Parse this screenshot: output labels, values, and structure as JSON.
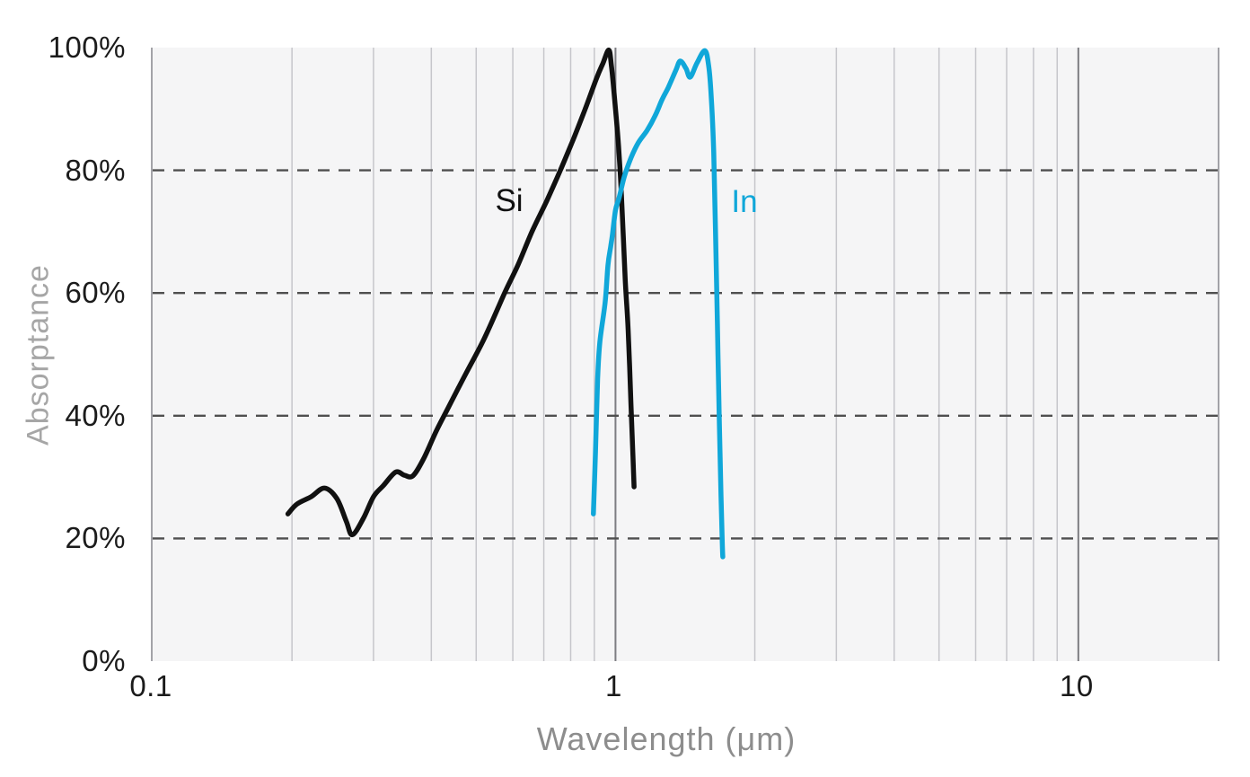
{
  "chart_data": {
    "type": "line",
    "title": "",
    "xlabel": "Wavelength (μm)",
    "ylabel": "Absorptance",
    "x_scale": "log",
    "xlim": [
      0.1,
      20
    ],
    "ylim": [
      0,
      100
    ],
    "grid": "vertical-solid, horizontal-dashed",
    "legend_position": "inline-labels",
    "x_ticks": [
      {
        "value": 0.1,
        "label": "0.1"
      },
      {
        "value": 1,
        "label": "1"
      },
      {
        "value": 10,
        "label": "10"
      }
    ],
    "y_ticks": [
      {
        "value": 0,
        "label": "0%"
      },
      {
        "value": 20,
        "label": "20%"
      },
      {
        "value": 40,
        "label": "40%"
      },
      {
        "value": 60,
        "label": "60%"
      },
      {
        "value": 80,
        "label": "80%"
      },
      {
        "value": 100,
        "label": "100%"
      }
    ],
    "x_gridlines_minor": [
      0.2,
      0.3,
      0.4,
      0.5,
      0.6,
      0.7,
      0.8,
      0.9,
      2,
      3,
      4,
      5,
      6,
      7,
      8,
      9
    ],
    "x_gridlines_major": [
      1,
      10
    ],
    "y_gridlines_dashed": [
      20,
      40,
      60,
      80
    ],
    "colors": {
      "plot_background": "#f5f5f6",
      "gridline_minor": "#c6c6cb",
      "gridline_major": "#7d7d82",
      "dashed_line": "#4f4f4f",
      "si_curve": "#111111",
      "in_curve": "#10a7d9",
      "tick_text": "#1b1b1b",
      "axis_title_y": "#a6a6a6",
      "axis_title_x": "#8d8d8d"
    },
    "series": [
      {
        "name": "Si",
        "label": "Si",
        "color": "#111111",
        "points": [
          [
            0.196,
            24
          ],
          [
            0.205,
            25.6
          ],
          [
            0.22,
            26.8
          ],
          [
            0.235,
            28.2
          ],
          [
            0.25,
            26.5
          ],
          [
            0.262,
            22.8
          ],
          [
            0.27,
            20.6
          ],
          [
            0.285,
            23.2
          ],
          [
            0.3,
            26.8
          ],
          [
            0.315,
            28.6
          ],
          [
            0.335,
            30.8
          ],
          [
            0.35,
            30.3
          ],
          [
            0.365,
            30.2
          ],
          [
            0.385,
            33
          ],
          [
            0.41,
            37.5
          ],
          [
            0.44,
            42
          ],
          [
            0.476,
            47
          ],
          [
            0.52,
            52.5
          ],
          [
            0.576,
            60
          ],
          [
            0.615,
            64.5
          ],
          [
            0.66,
            70
          ],
          [
            0.71,
            75
          ],
          [
            0.76,
            80
          ],
          [
            0.81,
            85
          ],
          [
            0.86,
            90
          ],
          [
            0.91,
            95
          ],
          [
            0.94,
            97.5
          ],
          [
            0.967,
            99.6
          ],
          [
            0.98,
            97
          ],
          [
            1.0,
            90
          ],
          [
            1.015,
            84
          ],
          [
            1.03,
            76
          ],
          [
            1.05,
            62
          ],
          [
            1.065,
            54
          ],
          [
            1.08,
            42
          ],
          [
            1.09,
            34
          ],
          [
            1.097,
            28.4
          ]
        ]
      },
      {
        "name": "In",
        "label": "In",
        "color": "#10a7d9",
        "points": [
          [
            0.896,
            24
          ],
          [
            0.905,
            34
          ],
          [
            0.915,
            46
          ],
          [
            0.925,
            52
          ],
          [
            0.95,
            58.5
          ],
          [
            0.963,
            64.5
          ],
          [
            0.976,
            67.5
          ],
          [
            0.985,
            69.5
          ],
          [
            1.0,
            73.5
          ],
          [
            1.018,
            75.5
          ],
          [
            1.045,
            79
          ],
          [
            1.08,
            82
          ],
          [
            1.12,
            84.5
          ],
          [
            1.17,
            86.5
          ],
          [
            1.22,
            89
          ],
          [
            1.26,
            91.5
          ],
          [
            1.3,
            93.5
          ],
          [
            1.35,
            96.3
          ],
          [
            1.38,
            97.8
          ],
          [
            1.42,
            96.6
          ],
          [
            1.45,
            95.2
          ],
          [
            1.5,
            97.5
          ],
          [
            1.56,
            99.5
          ],
          [
            1.59,
            97
          ],
          [
            1.61,
            92
          ],
          [
            1.63,
            83
          ],
          [
            1.645,
            70
          ],
          [
            1.66,
            55
          ],
          [
            1.675,
            40
          ],
          [
            1.69,
            27
          ],
          [
            1.7,
            20
          ],
          [
            1.705,
            17
          ]
        ]
      }
    ]
  }
}
